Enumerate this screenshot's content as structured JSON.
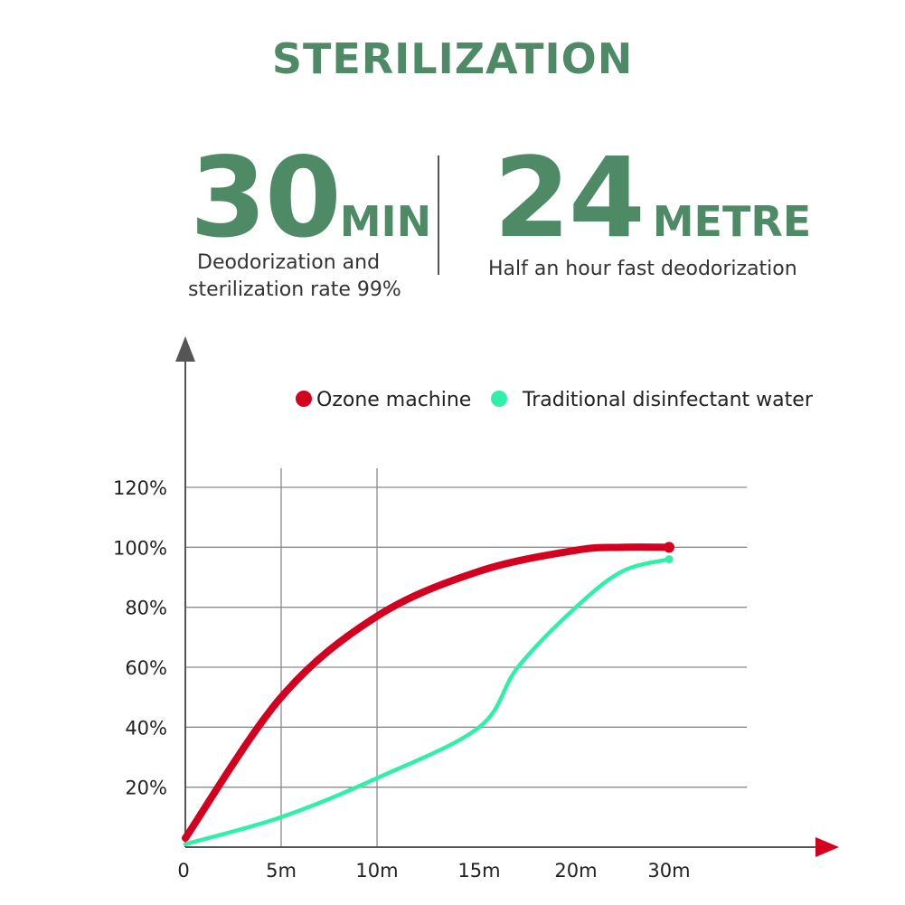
{
  "title": "STERILIZATION",
  "stat_left": {
    "number": "30",
    "unit": "MIN",
    "desc_line1": "Deodorization and",
    "desc_line2": "sterilization rate 99%"
  },
  "stat_right": {
    "number": "24",
    "unit": "METRE",
    "desc": "Half an hour fast deodorization"
  },
  "colors": {
    "green": "#4f8a67",
    "red": "#d40020",
    "teal": "#2ef0a8"
  },
  "chart_data": {
    "type": "line",
    "title": "",
    "xlabel": "",
    "ylabel": "",
    "x_categories": [
      "0",
      "5m",
      "10m",
      "15m",
      "20m",
      "30m"
    ],
    "y_tick_labels": [
      "20%",
      "40%",
      "60%",
      "80%",
      "100%",
      "120%"
    ],
    "ylim": [
      0,
      120
    ],
    "grid": true,
    "legend_position": "top",
    "series": [
      {
        "name": "Ozone machine",
        "color": "#d40020",
        "points": [
          [
            0,
            3
          ],
          [
            5,
            50
          ],
          [
            10,
            77
          ],
          [
            15,
            92
          ],
          [
            20,
            99
          ],
          [
            25,
            100
          ],
          [
            30,
            100
          ]
        ]
      },
      {
        "name": "Traditional disinfectant water",
        "color": "#2ef0a8",
        "points": [
          [
            0,
            1
          ],
          [
            5,
            10
          ],
          [
            10,
            23
          ],
          [
            15,
            40
          ],
          [
            17,
            60
          ],
          [
            20,
            80
          ],
          [
            25,
            92
          ],
          [
            30,
            96
          ]
        ]
      }
    ]
  }
}
